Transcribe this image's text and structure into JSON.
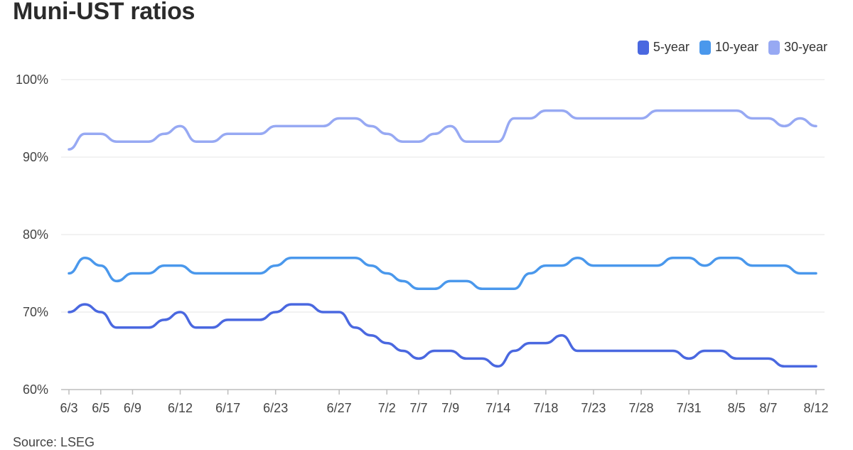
{
  "chart_data": {
    "type": "line",
    "title": "Muni-UST ratios",
    "source": "Source: LSEG",
    "legend_position": "top-right",
    "grid": true,
    "ylim": [
      60,
      100
    ],
    "yticks": [
      {
        "value": 60,
        "label": "60%"
      },
      {
        "value": 70,
        "label": "70%"
      },
      {
        "value": 80,
        "label": "80%"
      },
      {
        "value": 90,
        "label": "90%"
      },
      {
        "value": 100,
        "label": "100%"
      }
    ],
    "xtick_labels": [
      {
        "index": 0,
        "label": "6/3"
      },
      {
        "index": 2,
        "label": "6/5"
      },
      {
        "index": 4,
        "label": "6/9"
      },
      {
        "index": 7,
        "label": "6/12"
      },
      {
        "index": 10,
        "label": "6/17"
      },
      {
        "index": 13,
        "label": "6/23"
      },
      {
        "index": 17,
        "label": "6/27"
      },
      {
        "index": 20,
        "label": "7/2"
      },
      {
        "index": 22,
        "label": "7/7"
      },
      {
        "index": 24,
        "label": "7/9"
      },
      {
        "index": 27,
        "label": "7/14"
      },
      {
        "index": 30,
        "label": "7/18"
      },
      {
        "index": 33,
        "label": "7/23"
      },
      {
        "index": 36,
        "label": "7/28"
      },
      {
        "index": 39,
        "label": "7/31"
      },
      {
        "index": 42,
        "label": "8/5"
      },
      {
        "index": 44,
        "label": "8/7"
      },
      {
        "index": 47,
        "label": "8/12"
      }
    ],
    "series": [
      {
        "name": "5-year",
        "color": "#4a68e0",
        "values": [
          70,
          71,
          70,
          68,
          68,
          68,
          69,
          70,
          68,
          68,
          69,
          69,
          69,
          70,
          71,
          71,
          70,
          70,
          68,
          67,
          66,
          65,
          64,
          65,
          65,
          64,
          64,
          63,
          65,
          66,
          66,
          67,
          65,
          65,
          65,
          65,
          65,
          65,
          65,
          64,
          65,
          65,
          64,
          64,
          64,
          63,
          63,
          63
        ]
      },
      {
        "name": "10-year",
        "color": "#4a98ec",
        "values": [
          75,
          77,
          76,
          74,
          75,
          75,
          76,
          76,
          75,
          75,
          75,
          75,
          75,
          76,
          77,
          77,
          77,
          77,
          77,
          76,
          75,
          74,
          73,
          73,
          74,
          74,
          73,
          73,
          73,
          75,
          76,
          76,
          77,
          76,
          76,
          76,
          76,
          76,
          77,
          77,
          76,
          77,
          77,
          76,
          76,
          76,
          75,
          75
        ]
      },
      {
        "name": "30-year",
        "color": "#97a9f3",
        "values": [
          91,
          93,
          93,
          92,
          92,
          92,
          93,
          94,
          92,
          92,
          93,
          93,
          93,
          94,
          94,
          94,
          94,
          95,
          95,
          94,
          93,
          92,
          92,
          93,
          94,
          92,
          92,
          92,
          95,
          95,
          96,
          96,
          95,
          95,
          95,
          95,
          95,
          96,
          96,
          96,
          96,
          96,
          96,
          95,
          95,
          94,
          95,
          94
        ]
      }
    ]
  }
}
